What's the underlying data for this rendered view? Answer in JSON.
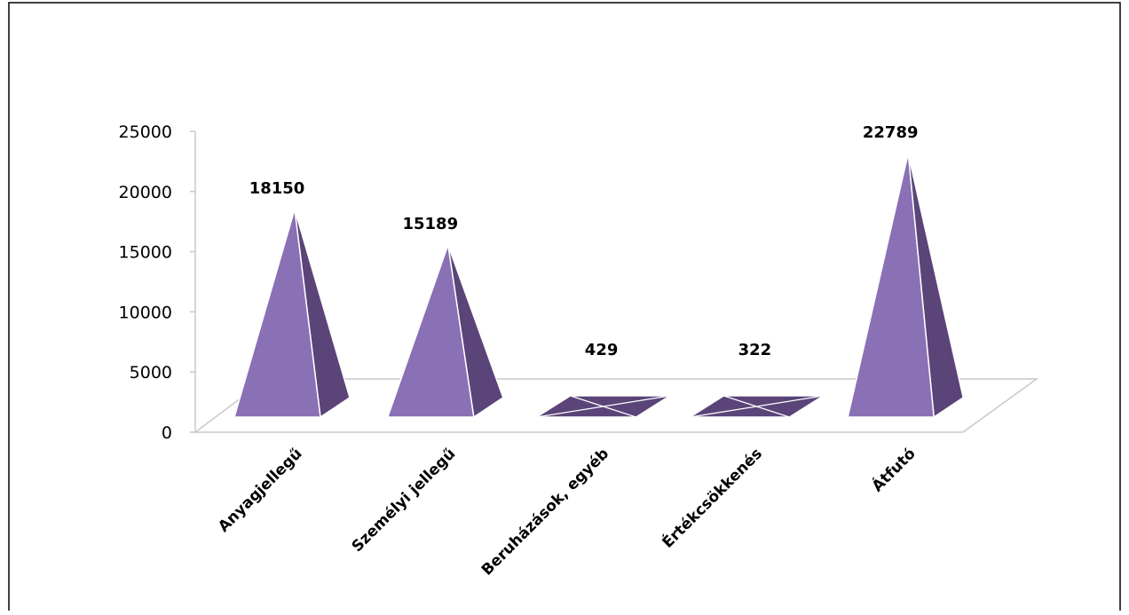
{
  "chart_data": {
    "type": "bar",
    "shape": "3d-pyramid",
    "title": "",
    "xlabel": "",
    "ylabel": "",
    "categories": [
      "Anyagjellegű",
      "Személyi jellegű",
      "Beruházások, egyéb",
      "Értékcsökkenés",
      "Átfutó"
    ],
    "values": [
      18150,
      15189,
      429,
      322,
      22789
    ],
    "value_labels": [
      "18150",
      "15189",
      "429",
      "322",
      "22789"
    ],
    "ylim": [
      0,
      25000
    ],
    "yticks": [
      0,
      5000,
      10000,
      15000,
      20000,
      25000
    ],
    "ytick_labels": [
      "0",
      "5000",
      "10000",
      "15000",
      "20000",
      "25000"
    ],
    "grid": false,
    "legend": "none",
    "colors": {
      "front": "#8a70b4",
      "side": "#5a4478",
      "floor_edge": "#c8c8c8",
      "frame": "#000000"
    }
  }
}
